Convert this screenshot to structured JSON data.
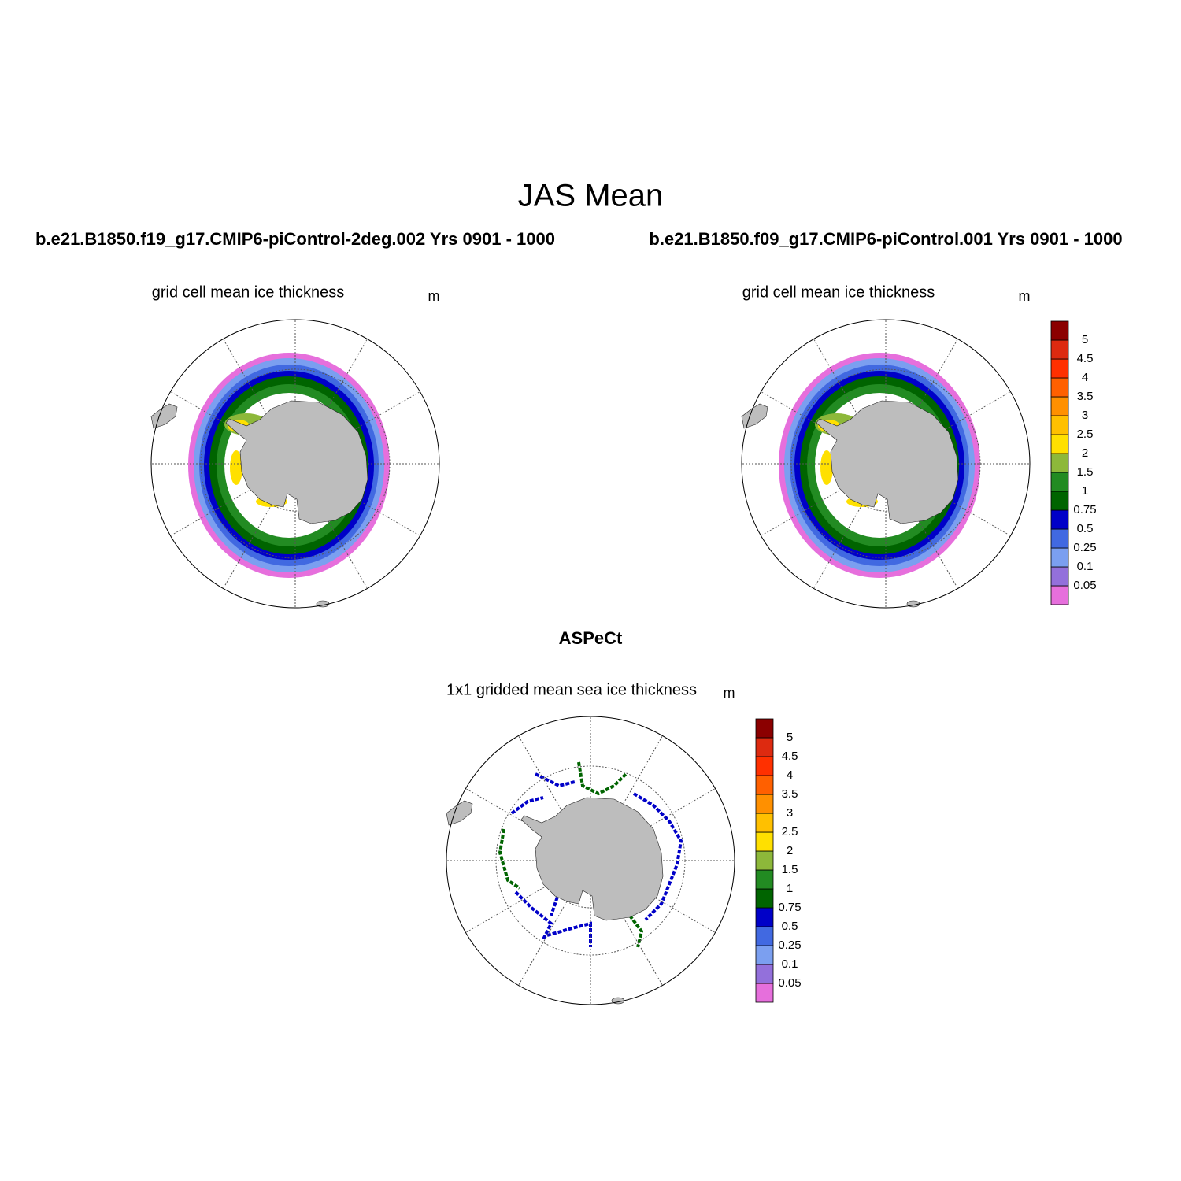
{
  "title": "JAS Mean",
  "panels": [
    {
      "heading": "b.e21.B1850.f19_g17.CMIP6-piControl-2deg.002  Yrs 0901 - 1000",
      "subtitle": "grid cell mean ice thickness",
      "units": "m"
    },
    {
      "heading": "b.e21.B1850.f09_g17.CMIP6-piControl.001  Yrs 0901 - 1000",
      "subtitle": "grid cell mean ice thickness",
      "units": "m"
    },
    {
      "heading": "ASPeCt",
      "subtitle": "1x1 gridded mean sea ice thickness",
      "units": "m"
    }
  ],
  "colorbar": {
    "levels": [
      0.05,
      0.1,
      0.25,
      0.5,
      0.75,
      1,
      1.5,
      2,
      2.5,
      3,
      3.5,
      4,
      4.5,
      5
    ],
    "colors": [
      "#e66fdc",
      "#9370db",
      "#7b9ff0",
      "#4169e1",
      "#0000c8",
      "#006400",
      "#228b22",
      "#8db83a",
      "#ffe000",
      "#ffc000",
      "#ff9000",
      "#ff6000",
      "#ff3000",
      "#dd2a10",
      "#8b0000"
    ]
  }
}
